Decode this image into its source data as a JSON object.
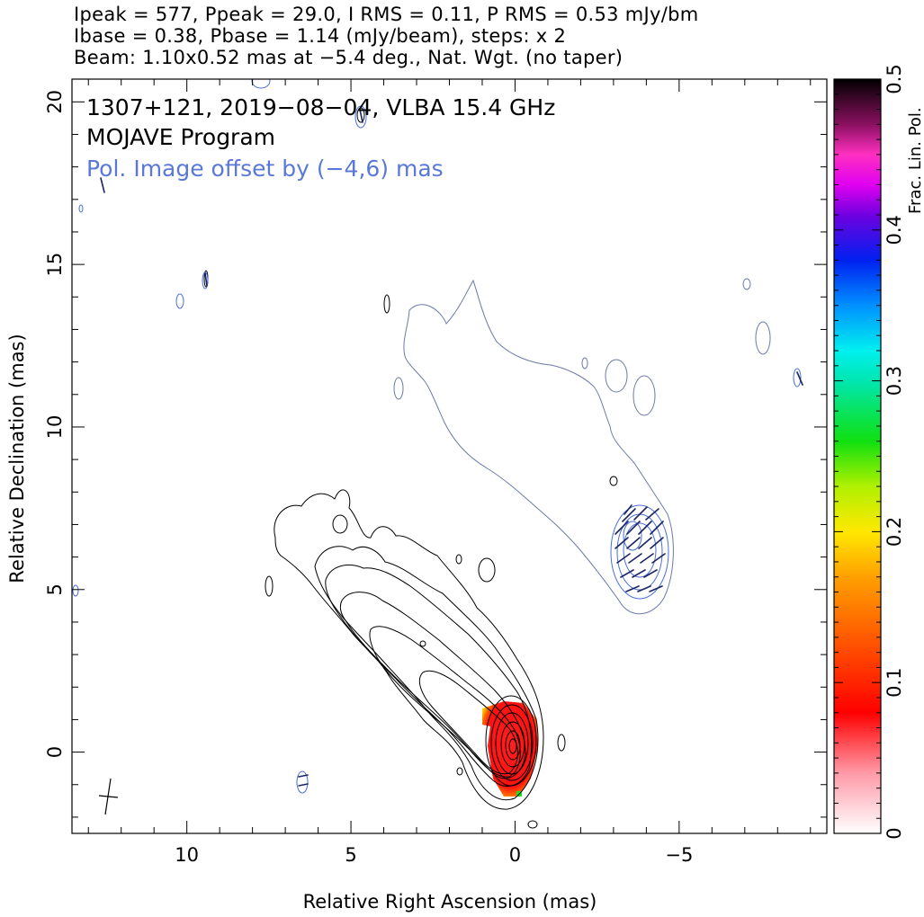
{
  "header": {
    "line1": "Ipeak = 577, Ppeak = 29.0, I RMS = 0.11, P RMS = 0.53 mJy/bm",
    "line2": "Ibase = 0.38, Pbase = 1.14 (mJy/beam), steps: x 2",
    "line3": "Beam: 1.10x0.52 mas at −5.4 deg., Nat. Wgt. (no taper)"
  },
  "annotations": {
    "source_line": "1307+121, 2019−08−04, VLBA 15.4 GHz",
    "program": "MOJAVE Program",
    "pol_offset": "Pol. Image offset by (−4,6) mas"
  },
  "colors": {
    "stokes_i_contours": "#000000",
    "polarization_contours": "#4a6fd6",
    "evpa_ticks": "#1a2466",
    "core_fill": "#ff1a1a",
    "text": "#000000"
  },
  "chart_data": {
    "type": "contour",
    "xlabel": "Relative Right Ascension (mas)",
    "ylabel": "Relative Declination (mas)",
    "xlim": [
      13.5,
      -9.5
    ],
    "ylim": [
      -2.5,
      20.7
    ],
    "x_ticks": [
      10,
      5,
      0,
      -5
    ],
    "x_tick_labels": [
      "10",
      "5",
      "0",
      "−5"
    ],
    "y_ticks": [
      0,
      5,
      10,
      15,
      20
    ],
    "y_tick_labels": [
      "0",
      "5",
      "10",
      "15",
      "20"
    ],
    "colorbar": {
      "label": "Frac. Lin. Pol.",
      "range": [
        0,
        0.5
      ],
      "ticks": [
        0,
        0.1,
        0.2,
        0.3,
        0.4,
        0.5
      ],
      "tick_labels": [
        "0",
        "0.1",
        "0.2",
        "0.3",
        "0.4",
        "0.5"
      ]
    },
    "core_position": [
      0,
      0
    ],
    "pol_offset": [
      -4,
      6
    ],
    "contour_levels_mJy": [
      0.38,
      0.76,
      1.52,
      3.04,
      6.08,
      12.16,
      24.32,
      48.64,
      97.28,
      194.56,
      389.12
    ],
    "beam": {
      "major_mas": 1.1,
      "minor_mas": 0.52,
      "pa_deg": -5.4
    }
  }
}
